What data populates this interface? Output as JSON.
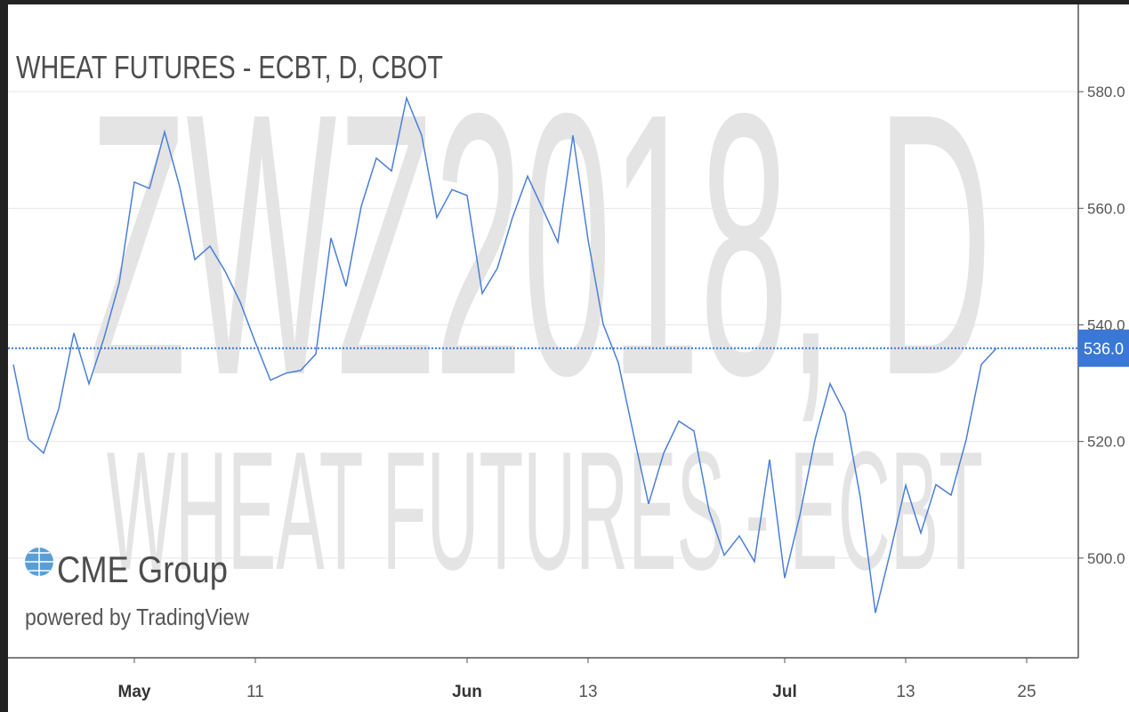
{
  "chart_data": {
    "type": "line",
    "title": "WHEAT FUTURES - ECBT, D, CBOT",
    "watermark": "ZWZ2018, D",
    "watermark_subtitle": "WHEAT FUTURES - ECBT",
    "logo": "CME Group",
    "logo_subtitle": "powered by TradingView",
    "categories": [
      null,
      null,
      null,
      null,
      null,
      null,
      null,
      null,
      "May",
      null,
      null,
      null,
      null,
      null,
      null,
      null,
      "11",
      null,
      null,
      null,
      null,
      null,
      null,
      null,
      null,
      null,
      null,
      null,
      null,
      null,
      "Jun",
      null,
      null,
      null,
      null,
      null,
      null,
      null,
      "13",
      null,
      null,
      null,
      null,
      null,
      null,
      null,
      null,
      null,
      null,
      null,
      null,
      "Jul",
      null,
      null,
      null,
      null,
      null,
      null,
      null,
      "13",
      null,
      null,
      null,
      null,
      null,
      null,
      null,
      "25"
    ],
    "series": [
      {
        "name": "ZWZ2018",
        "color": "#4a7fd8",
        "values": [
          533.2,
          520.4,
          518.0,
          525.6,
          538.6,
          529.9,
          537.8,
          547.2,
          564.5,
          563.4,
          573.1,
          563.7,
          551.2,
          553.5,
          549.2,
          543.9,
          537.0,
          530.5,
          531.7,
          532.2,
          535.0,
          554.9,
          546.6,
          560.3,
          568.6,
          566.4,
          578.9,
          572.5,
          558.4,
          563.2,
          562.2,
          545.4,
          549.7,
          558.4,
          565.5,
          559.9,
          554.2,
          572.5,
          554.6,
          540.1,
          533.5,
          521.3,
          509.3,
          518.0,
          523.5,
          521.8,
          508.1,
          500.5,
          503.8,
          499.4,
          516.9,
          496.6,
          507.3,
          520.3,
          529.9,
          524.8,
          510.4,
          490.6,
          501.2,
          512.5,
          504.3,
          512.6,
          510.8,
          520.3,
          533.2,
          536.0,
          null,
          null
        ]
      }
    ],
    "last_price": {
      "value": 536,
      "label": "536.0",
      "color": "#3a78d6"
    },
    "ylim": [
      482.9,
      594.2
    ],
    "yticks": [
      {
        "value": 500,
        "label": "500.0"
      },
      {
        "value": 520,
        "label": "520.0"
      },
      {
        "value": 540,
        "label": "540.0"
      },
      {
        "value": 560,
        "label": "560.0"
      },
      {
        "value": 580,
        "label": "580.0"
      }
    ],
    "grid": true
  }
}
